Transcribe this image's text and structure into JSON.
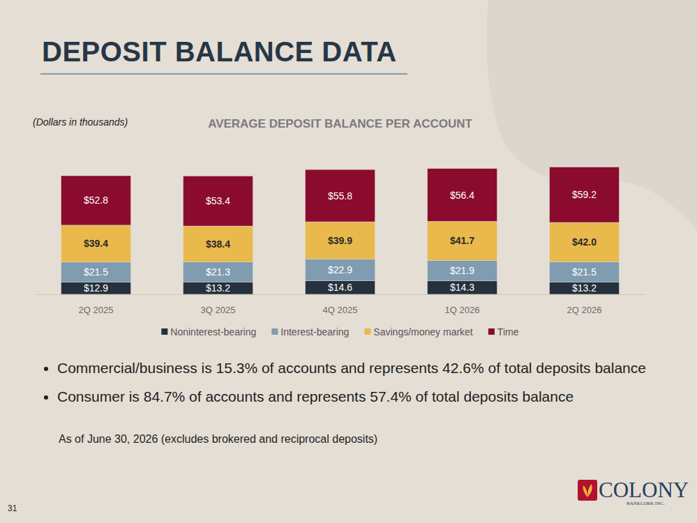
{
  "header": {
    "title": "DEPOSIT BALANCE DATA"
  },
  "chart_data": {
    "type": "bar",
    "title": "AVERAGE DEPOSIT BALANCE PER ACCOUNT",
    "subtitle": "(Dollars in thousands)",
    "categories": [
      "2Q 2025",
      "3Q 2025",
      "4Q 2025",
      "1Q 2026",
      "2Q 2026"
    ],
    "series": [
      {
        "name": "Noninterest-bearing",
        "color": "#25313d",
        "values": [
          12.9,
          13.2,
          14.6,
          14.3,
          13.2
        ],
        "value_labels": [
          "$12.9",
          "$13.2",
          "$14.6",
          "$14.3",
          "$13.2"
        ]
      },
      {
        "name": "Interest-bearing",
        "color": "#7f9cb0",
        "values": [
          21.5,
          21.3,
          22.9,
          21.9,
          21.5
        ],
        "value_labels": [
          "$21.5",
          "$21.3",
          "$22.9",
          "$21.9",
          "$21.5"
        ]
      },
      {
        "name": "Savings/money market",
        "color": "#e9b94c",
        "values": [
          39.4,
          38.4,
          39.9,
          41.7,
          42.0
        ],
        "value_labels": [
          "$39.4",
          "$38.4",
          "$39.9",
          "$41.7",
          "$42.0"
        ]
      },
      {
        "name": "Time",
        "color": "#8a0b2e",
        "values": [
          52.8,
          53.4,
          55.8,
          56.4,
          59.2
        ],
        "value_labels": [
          "$52.8",
          "$53.4",
          "$55.8",
          "$56.4",
          "$59.2"
        ]
      }
    ],
    "ylim": [
      0,
      140
    ],
    "stacked": true,
    "data_labels": true,
    "tick_labels": "x",
    "legend": "bottom",
    "grid": false
  },
  "notes": {
    "bullets": [
      "Commercial/business is 15.3% of accounts and represents 42.6% of total deposits balance",
      "Consumer is 84.7% of accounts and represents 57.4% of total deposits balance"
    ],
    "footnote": "As of June 30, 2026 (excludes brokered and reciprocal deposits)",
    "page_number": "31"
  },
  "logo": {
    "name": "COLONY",
    "subtitle": "BANKCORP, INC."
  }
}
